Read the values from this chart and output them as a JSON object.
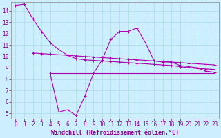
{
  "background_color": "#cceeff",
  "grid_color": "#aadddd",
  "line_color": "#aa00aa",
  "xlim": [
    -0.5,
    23.5
  ],
  "ylim": [
    4.5,
    14.8
  ],
  "yticks": [
    5,
    6,
    7,
    8,
    9,
    10,
    11,
    12,
    13,
    14
  ],
  "xticks": [
    0,
    1,
    2,
    3,
    4,
    5,
    6,
    7,
    8,
    9,
    10,
    11,
    12,
    13,
    14,
    15,
    16,
    17,
    18,
    19,
    20,
    21,
    22,
    23
  ],
  "xlabel": "Windchill (Refroidissement éolien,°C)",
  "line1_x": [
    0,
    1,
    2,
    3,
    4,
    5,
    6,
    7,
    8,
    9,
    10,
    11,
    12,
    13,
    14,
    15,
    16,
    17,
    18,
    19,
    20,
    21,
    22,
    23
  ],
  "line1_y": [
    14.5,
    14.6,
    13.3,
    12.2,
    11.2,
    10.6,
    10.1,
    9.8,
    9.7,
    9.65,
    9.6,
    9.55,
    9.5,
    9.45,
    9.4,
    9.35,
    9.3,
    9.25,
    9.2,
    9.1,
    9.0,
    8.95,
    8.9,
    8.85
  ],
  "line2_x": [
    2,
    3,
    4,
    5,
    6,
    7,
    8,
    9,
    10,
    11,
    12,
    13,
    14,
    15,
    16,
    17,
    18,
    19,
    20,
    21,
    22,
    23
  ],
  "line2_y": [
    10.3,
    10.25,
    10.2,
    10.15,
    10.1,
    10.05,
    10.0,
    9.95,
    9.9,
    9.85,
    9.8,
    9.75,
    9.7,
    9.65,
    9.6,
    9.55,
    9.5,
    9.45,
    9.4,
    9.35,
    9.3,
    9.25
  ],
  "line3_x": [
    4,
    5,
    6,
    7,
    8,
    9,
    10,
    11,
    12,
    13,
    14,
    15,
    16,
    17,
    18,
    19,
    20,
    21,
    22,
    23
  ],
  "line3_y": [
    8.5,
    5.1,
    5.3,
    4.8,
    6.5,
    8.5,
    9.7,
    11.5,
    12.2,
    12.2,
    12.5,
    11.2,
    9.6,
    9.5,
    9.5,
    9.2,
    9.1,
    9.0,
    8.7,
    8.6
  ],
  "line4_x": [
    4,
    23
  ],
  "line4_y": [
    8.5,
    8.5
  ],
  "tick_fontsize": 5.5,
  "xlabel_fontsize": 6.0
}
